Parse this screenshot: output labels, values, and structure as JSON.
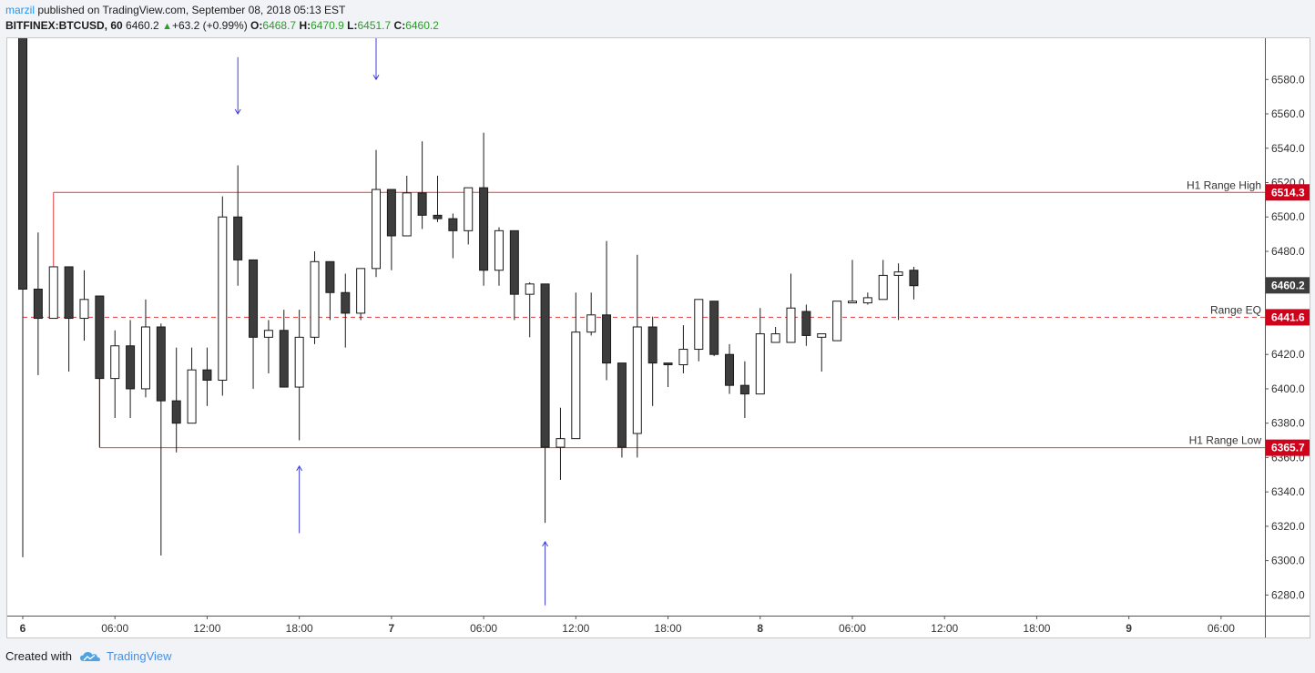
{
  "header": {
    "author": "marzil",
    "published_text": " published on TradingView.com, September 08, 2018 05:13 EST",
    "symbol": "BITFINEX:BTCUSD, 60",
    "price": "6460.2",
    "change_arrow": "▲",
    "change": "+63.2 (+0.99%)",
    "o_label": "O:",
    "o_value": "6468.7",
    "h_label": "H:",
    "h_value": "6470.9",
    "l_label": "L:",
    "l_value": "6451.7",
    "c_label": "C:",
    "c_value": "6460.2"
  },
  "footer": {
    "created_with": "Created with",
    "brand": "TradingView"
  },
  "colors": {
    "bull_fill": "#ffffff",
    "bear_fill": "#3d3d3d",
    "candle_stroke": "#1a1a1a",
    "range_line": "#e03c3c",
    "range_label_bg": "#d0021b",
    "arrow": "#3d3dd6",
    "last_price_bg": "#3d3d3d"
  },
  "chart_data": {
    "type": "candlestick",
    "ylim": [
      6268,
      6604
    ],
    "y_ticks": [
      6280,
      6300,
      6320,
      6340,
      6360,
      6380,
      6400,
      6420,
      6440,
      6460,
      6480,
      6500,
      6520,
      6540,
      6560,
      6580
    ],
    "y_tick_labels": [
      "6280.0",
      "6300.0",
      "6320.0",
      "6340.0",
      "6360.0",
      "6380.0",
      "6400.0",
      "6420.0",
      "6440.0",
      "6460.0",
      "6480.0",
      "6500.0",
      "6520.0",
      "6540.0",
      "6560.0",
      "6580.0"
    ],
    "x_ticks": [
      {
        "label": "6",
        "pos": 0,
        "bold": true
      },
      {
        "label": "06:00",
        "pos": 6,
        "bold": false
      },
      {
        "label": "12:00",
        "pos": 12,
        "bold": false
      },
      {
        "label": "18:00",
        "pos": 18,
        "bold": false
      },
      {
        "label": "7",
        "pos": 24,
        "bold": true
      },
      {
        "label": "06:00",
        "pos": 30,
        "bold": false
      },
      {
        "label": "12:00",
        "pos": 36,
        "bold": false
      },
      {
        "label": "18:00",
        "pos": 42,
        "bold": false
      },
      {
        "label": "8",
        "pos": 48,
        "bold": true
      },
      {
        "label": "06:00",
        "pos": 54,
        "bold": false
      },
      {
        "label": "12:00",
        "pos": 60,
        "bold": false
      },
      {
        "label": "18:00",
        "pos": 66,
        "bold": false
      },
      {
        "label": "9",
        "pos": 72,
        "bold": true
      },
      {
        "label": "06:00",
        "pos": 78,
        "bold": false
      }
    ],
    "candles": [
      [
        6650,
        6650,
        6302,
        6458
      ],
      [
        6458,
        6491,
        6408,
        6441
      ],
      [
        6441,
        6471,
        6441,
        6471
      ],
      [
        6471,
        6471,
        6410,
        6441
      ],
      [
        6441,
        6469,
        6428,
        6452
      ],
      [
        6454,
        6454,
        6366,
        6406
      ],
      [
        6406,
        6434,
        6383,
        6425
      ],
      [
        6425,
        6440,
        6383,
        6400
      ],
      [
        6400,
        6452,
        6395,
        6436
      ],
      [
        6436,
        6438,
        6303,
        6393
      ],
      [
        6393,
        6424,
        6363,
        6380
      ],
      [
        6380,
        6424,
        6380,
        6411
      ],
      [
        6411,
        6424,
        6390,
        6405
      ],
      [
        6405,
        6512,
        6396,
        6500
      ],
      [
        6500,
        6530,
        6460,
        6475
      ],
      [
        6475,
        6475,
        6400,
        6430
      ],
      [
        6430,
        6440,
        6409,
        6434
      ],
      [
        6434,
        6446,
        6402,
        6401
      ],
      [
        6401,
        6446,
        6370,
        6430
      ],
      [
        6430,
        6480,
        6426,
        6474
      ],
      [
        6474,
        6474,
        6440,
        6456
      ],
      [
        6456,
        6467,
        6424,
        6444
      ],
      [
        6444,
        6470,
        6440,
        6470
      ],
      [
        6470,
        6539,
        6465,
        6516
      ],
      [
        6516,
        6516,
        6469,
        6489
      ],
      [
        6489,
        6524,
        6489,
        6514
      ],
      [
        6514,
        6544,
        6493,
        6501
      ],
      [
        6501,
        6524,
        6497,
        6499
      ],
      [
        6499,
        6502,
        6476,
        6492
      ],
      [
        6492,
        6517,
        6484,
        6517
      ],
      [
        6517,
        6549,
        6460,
        6469
      ],
      [
        6469,
        6494,
        6460,
        6492
      ],
      [
        6492,
        6492,
        6440,
        6455
      ],
      [
        6455,
        6462,
        6430,
        6461
      ],
      [
        6461,
        6461,
        6322,
        6366
      ],
      [
        6366,
        6389,
        6347,
        6371
      ],
      [
        6371,
        6456,
        6371,
        6433
      ],
      [
        6433,
        6456,
        6431,
        6443
      ],
      [
        6443,
        6486,
        6405,
        6415
      ],
      [
        6415,
        6415,
        6360,
        6366
      ],
      [
        6374,
        6478,
        6360,
        6436
      ],
      [
        6436,
        6442,
        6390,
        6415
      ],
      [
        6415,
        6415,
        6401,
        6414
      ],
      [
        6414,
        6437,
        6409,
        6423
      ],
      [
        6423,
        6452,
        6416,
        6452
      ],
      [
        6451,
        6451,
        6419,
        6420
      ],
      [
        6420,
        6426,
        6397,
        6402
      ],
      [
        6402,
        6416,
        6383,
        6397
      ],
      [
        6397,
        6447,
        6397,
        6432
      ],
      [
        6427,
        6436,
        6427,
        6432
      ],
      [
        6427,
        6467,
        6427,
        6447
      ],
      [
        6445,
        6449,
        6425,
        6431
      ],
      [
        6430,
        6432,
        6410,
        6432
      ],
      [
        6428,
        6451,
        6428,
        6451
      ],
      [
        6450,
        6475,
        6450,
        6451
      ],
      [
        6450,
        6456,
        6449,
        6453
      ],
      [
        6452,
        6475,
        6452,
        6466
      ],
      [
        6466,
        6473,
        6440,
        6468
      ],
      [
        6469,
        6471,
        6452,
        6460
      ]
    ],
    "hlines": [
      {
        "label": "H1 Range High",
        "value": 6514.3,
        "value_label": "6514.3",
        "style": "solid",
        "start": 2
      },
      {
        "label": "Range EQ",
        "value": 6441.6,
        "value_label": "6441.6",
        "style": "dashed",
        "start": 0
      },
      {
        "label": "H1 Range Low",
        "value": 6365.7,
        "value_label": "6365.7",
        "style": "solid",
        "start": 5
      }
    ],
    "last_price": {
      "value": 6460.2,
      "label": "6460.2"
    },
    "arrows": [
      {
        "pos": 14,
        "from": 6593,
        "to": 6560,
        "dir": "down"
      },
      {
        "pos": 23,
        "from": 6619,
        "to": 6580,
        "dir": "down"
      },
      {
        "pos": 18,
        "from": 6316,
        "to": 6355,
        "dir": "up"
      },
      {
        "pos": 34,
        "from": 6274,
        "to": 6311,
        "dir": "up"
      }
    ]
  }
}
